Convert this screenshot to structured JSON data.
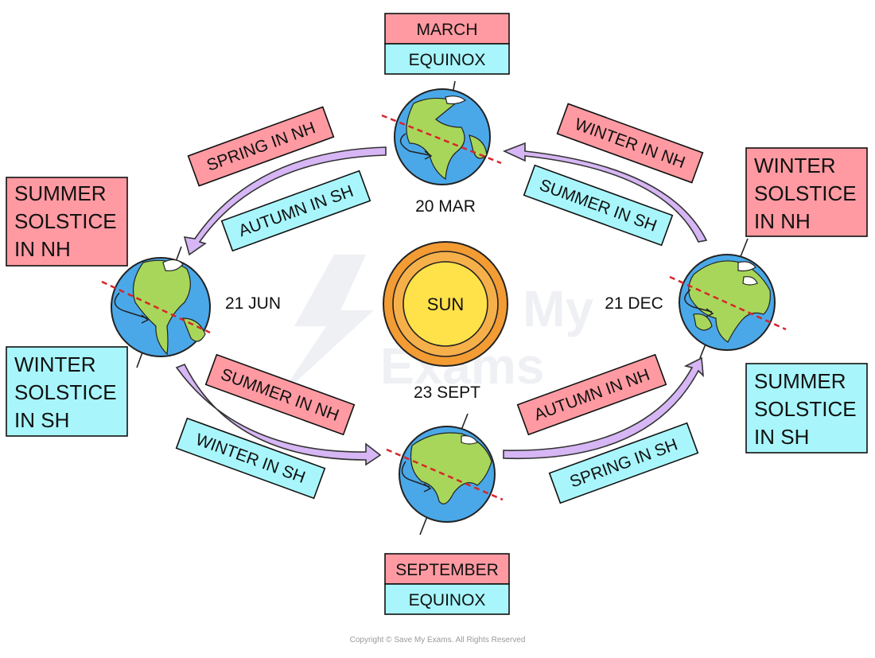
{
  "sun": {
    "label": "SUN",
    "color_inner": "#ffe14a",
    "color_outer": "#f39c34"
  },
  "dates": {
    "mar": "20 MAR",
    "jun": "21 JUN",
    "sep": "23 SEPT",
    "dec": "21 DEC"
  },
  "headers": {
    "march_month": "MARCH",
    "march_type": "EQUINOX",
    "september_month": "SEPTEMBER",
    "september_type": "EQUINOX"
  },
  "solstices": {
    "summer_nh": [
      "SUMMER",
      "SOLSTICE",
      "IN NH"
    ],
    "winter_sh": [
      "WINTER",
      "SOLSTICE",
      "IN SH"
    ],
    "winter_nh": [
      "WINTER",
      "SOLSTICE",
      "IN NH"
    ],
    "summer_sh": [
      "SUMMER",
      "SOLSTICE",
      "IN SH"
    ]
  },
  "seasons": {
    "spring_nh": "SPRING IN NH",
    "autumn_sh": "AUTUMN IN SH",
    "winter_nh": "WINTER IN NH",
    "summer_sh_top": "SUMMER IN SH",
    "summer_nh": "SUMMER IN NH",
    "winter_sh": "WINTER IN SH",
    "autumn_nh": "AUTUMN IN NH",
    "spring_sh": "SPRING IN SH"
  },
  "watermark": [
    "Save My",
    "Exams"
  ],
  "copyright": "Copyright © Save My Exams. All Rights Reserved",
  "colors": {
    "pink": "#ff9aa2",
    "cyan": "#a8f6fb",
    "arrow": "#d6b6f4",
    "equator": "#d6262b"
  }
}
